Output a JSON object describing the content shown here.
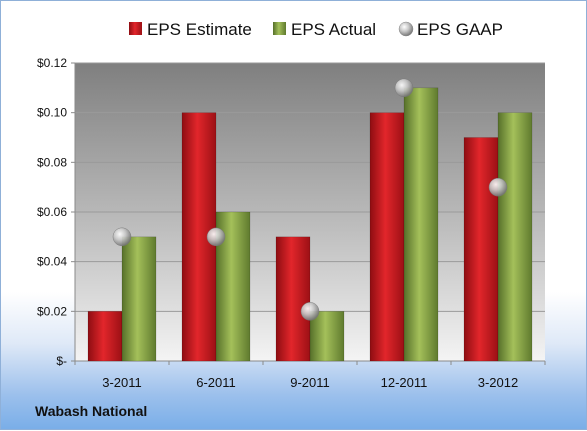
{
  "chart_data": {
    "type": "bar",
    "title": "",
    "xlabel": "",
    "ylabel": "",
    "categories": [
      "3-2011",
      "6-2011",
      "9-2011",
      "12-2011",
      "3-2012"
    ],
    "series": [
      {
        "name": "EPS Estimate",
        "kind": "bar",
        "color": "#c8161d",
        "values": [
          0.02,
          0.1,
          0.05,
          0.1,
          0.09
        ]
      },
      {
        "name": "EPS Actual",
        "kind": "bar",
        "color": "#7e9a3c",
        "values": [
          0.05,
          0.06,
          0.02,
          0.11,
          0.1
        ]
      },
      {
        "name": "EPS GAAP",
        "kind": "marker",
        "color": "#a9a9a9",
        "values": [
          0.05,
          0.05,
          0.02,
          0.11,
          0.07
        ]
      }
    ],
    "ylim": [
      0,
      0.12
    ],
    "y_ticks": [
      0,
      0.02,
      0.04,
      0.06,
      0.08,
      0.1,
      0.12
    ],
    "y_tick_labels": [
      "$-",
      "$0.02",
      "$0.04",
      "$0.06",
      "$0.08",
      "$0.10",
      "$0.12"
    ],
    "grid": true,
    "legend_position": "top"
  },
  "footer": {
    "company": "Wabash National"
  }
}
